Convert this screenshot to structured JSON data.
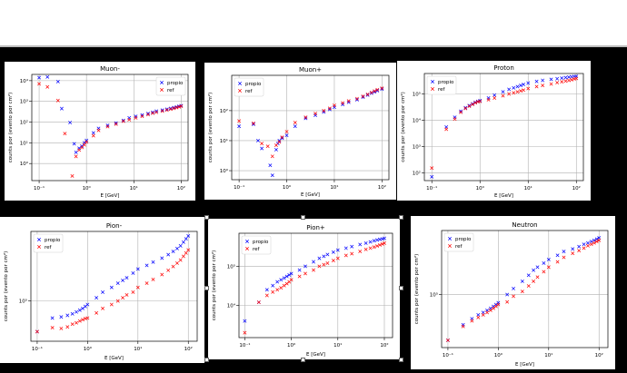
{
  "colors": {
    "propio": "#0000ff",
    "ref": "#ff0000",
    "grid": "#b0b0b0",
    "axis": "#000000"
  },
  "chart_data": [
    {
      "type": "scatter",
      "title": "Muon-",
      "xlabel": "E [GeV]",
      "ylabel": "counts por (evento por cm²)",
      "xscale": "log",
      "yscale": "log",
      "xlim": [
        0.07,
        140
      ],
      "ylim": [
        0.15,
        20000
      ],
      "xticks": [
        0.1,
        1,
        10,
        100
      ],
      "xticklabels": [
        "10⁻¹",
        "10⁰",
        "10¹",
        "10²"
      ],
      "yticks": [
        1,
        10,
        100,
        1000,
        10000
      ],
      "yticklabels": [
        "10⁰",
        "10¹",
        "10²",
        "10³",
        "10⁴"
      ],
      "grid": true,
      "legend_position": "upper right",
      "series": [
        {
          "name": "propio",
          "x": [
            0.1,
            0.15,
            0.25,
            0.3,
            0.45,
            0.55,
            0.6,
            0.7,
            0.8,
            0.9,
            1.0,
            1.4,
            1.8,
            2.8,
            4.2,
            6,
            8,
            11,
            15,
            20,
            25,
            30,
            40,
            50,
            60,
            70,
            80,
            90,
            100
          ],
          "y": [
            14000,
            15000,
            9000,
            450,
            95,
            9,
            3.5,
            5.5,
            7,
            10,
            13,
            30,
            50,
            70,
            90,
            120,
            160,
            190,
            220,
            260,
            300,
            340,
            380,
            420,
            460,
            500,
            540,
            580,
            620
          ]
        },
        {
          "name": "ref",
          "x": [
            0.1,
            0.15,
            0.25,
            0.35,
            0.5,
            0.6,
            0.7,
            0.8,
            0.9,
            1.0,
            1.4,
            1.8,
            2.8,
            4.2,
            6,
            8,
            11,
            15,
            20,
            25,
            30,
            40,
            50,
            60,
            70,
            80,
            90,
            100
          ],
          "y": [
            7000,
            5000,
            1100,
            28,
            0.25,
            2.2,
            4.5,
            6,
            8,
            11,
            22,
            40,
            60,
            80,
            110,
            130,
            160,
            190,
            230,
            270,
            300,
            340,
            380,
            420,
            460,
            500,
            540,
            580
          ]
        }
      ]
    },
    {
      "type": "scatter",
      "title": "Muon+",
      "xlabel": "E [GeV]",
      "ylabel": "counts por (evento por cm²)",
      "xscale": "log",
      "yscale": "log",
      "xlim": [
        0.07,
        140
      ],
      "ylim": [
        0.5,
        1500
      ],
      "xticks": [
        0.1,
        1,
        10,
        100
      ],
      "xticklabels": [
        "10⁻¹",
        "10⁰",
        "10¹",
        "10²"
      ],
      "yticks": [
        1,
        10,
        100
      ],
      "yticklabels": [
        "10⁰",
        "10¹",
        "10²"
      ],
      "grid": true,
      "legend_position": "upper left",
      "series": [
        {
          "name": "propio",
          "x": [
            0.1,
            0.2,
            0.25,
            0.3,
            0.45,
            0.5,
            0.6,
            0.65,
            0.7,
            0.8,
            1.0,
            1.5,
            2.5,
            4,
            6,
            8,
            10,
            15,
            20,
            30,
            40,
            50,
            60,
            70,
            80,
            100
          ],
          "y": [
            30,
            35,
            10,
            5.5,
            1.5,
            0.7,
            5,
            8,
            10,
            12,
            15,
            30,
            55,
            70,
            90,
            110,
            130,
            160,
            190,
            230,
            280,
            330,
            380,
            420,
            460,
            520
          ]
        },
        {
          "name": "ref",
          "x": [
            0.1,
            0.2,
            0.3,
            0.4,
            0.5,
            0.6,
            0.7,
            0.8,
            1.0,
            1.5,
            2.5,
            4,
            6,
            8,
            10,
            15,
            20,
            30,
            40,
            50,
            60,
            70,
            80,
            100
          ],
          "y": [
            45,
            38,
            8,
            6.5,
            3,
            7,
            9,
            13,
            20,
            40,
            60,
            80,
            100,
            120,
            150,
            180,
            210,
            250,
            300,
            350,
            400,
            450,
            500,
            560
          ]
        }
      ]
    },
    {
      "type": "scatter",
      "title": "Proton",
      "xlabel": "E [GeV]",
      "ylabel": "counts por (evento por cm²)",
      "xscale": "log",
      "yscale": "log",
      "xlim": [
        0.07,
        140
      ],
      "ylim": [
        50,
        600000
      ],
      "xticks": [
        0.1,
        1,
        10,
        100
      ],
      "xticklabels": [
        "10⁻¹",
        "10⁰",
        "10¹",
        "10²"
      ],
      "yticks": [
        100,
        1000,
        10000,
        100000
      ],
      "yticklabels": [
        "10²",
        "10³",
        "10⁴",
        "10⁵"
      ],
      "grid": true,
      "legend_position": "upper left",
      "series": [
        {
          "name": "propio",
          "x": [
            0.1,
            0.2,
            0.3,
            0.4,
            0.5,
            0.6,
            0.7,
            0.8,
            0.9,
            1.0,
            1.5,
            2,
            3,
            4,
            5,
            6,
            7,
            8,
            10,
            15,
            20,
            30,
            40,
            50,
            60,
            70,
            80,
            90,
            100
          ],
          "y": [
            70,
            5500,
            13000,
            22000,
            30000,
            36000,
            42000,
            48000,
            52000,
            56000,
            70000,
            90000,
            120000,
            150000,
            170000,
            190000,
            210000,
            230000,
            260000,
            300000,
            330000,
            360000,
            380000,
            400000,
            420000,
            440000,
            450000,
            460000,
            470000
          ]
        },
        {
          "name": "ref",
          "x": [
            0.1,
            0.2,
            0.3,
            0.4,
            0.5,
            0.6,
            0.7,
            0.8,
            0.9,
            1.0,
            1.5,
            2,
            3,
            4,
            5,
            6,
            7,
            8,
            10,
            15,
            20,
            30,
            40,
            50,
            60,
            70,
            80,
            90,
            100
          ],
          "y": [
            150,
            4500,
            11000,
            20000,
            28000,
            34000,
            40000,
            46000,
            50000,
            52000,
            60000,
            70000,
            85000,
            100000,
            110000,
            120000,
            130000,
            140000,
            160000,
            190000,
            210000,
            240000,
            270000,
            290000,
            310000,
            330000,
            350000,
            370000,
            390000
          ]
        }
      ]
    },
    {
      "type": "scatter",
      "title": "Pion-",
      "xlabel": "E [GeV]",
      "ylabel": "counts por (evento por cm²)",
      "xscale": "log",
      "yscale": "log",
      "xlim": [
        0.075,
        150
      ],
      "ylim": [
        30000,
        800000
      ],
      "xticks": [
        0.1,
        1,
        10,
        100
      ],
      "xticklabels": [
        "10⁻¹",
        "10⁰",
        "10¹",
        "10²"
      ],
      "yticks": [
        100000
      ],
      "yticklabels": [
        "10⁵"
      ],
      "grid": true,
      "legend_position": "upper left",
      "series": [
        {
          "name": "propio",
          "x": [
            0.1,
            0.2,
            0.3,
            0.4,
            0.5,
            0.6,
            0.7,
            0.8,
            0.9,
            1.0,
            1.5,
            2,
            3,
            4,
            5,
            6,
            8,
            10,
            15,
            20,
            30,
            40,
            50,
            60,
            70,
            80,
            90,
            100
          ],
          "y": [
            40000,
            60000,
            62000,
            65000,
            68000,
            72000,
            76000,
            80000,
            85000,
            90000,
            110000,
            130000,
            150000,
            170000,
            185000,
            200000,
            230000,
            260000,
            290000,
            320000,
            360000,
            400000,
            440000,
            480000,
            520000,
            580000,
            640000,
            700000
          ]
        },
        {
          "name": "ref",
          "x": [
            0.1,
            0.2,
            0.3,
            0.4,
            0.5,
            0.6,
            0.7,
            0.8,
            0.9,
            1.0,
            1.5,
            2,
            3,
            4,
            5,
            6,
            8,
            10,
            15,
            20,
            30,
            40,
            50,
            60,
            70,
            80,
            90,
            100
          ],
          "y": [
            40000,
            45000,
            44000,
            46000,
            50000,
            52000,
            55000,
            57000,
            59000,
            60000,
            70000,
            80000,
            90000,
            100000,
            110000,
            120000,
            130000,
            150000,
            170000,
            190000,
            220000,
            250000,
            280000,
            310000,
            340000,
            380000,
            420000,
            460000
          ]
        }
      ]
    },
    {
      "type": "scatter",
      "title": "Pion+",
      "xlabel": "E [GeV]",
      "ylabel": "counts por (evento por cm²)",
      "xscale": "log",
      "yscale": "log",
      "xlim": [
        0.075,
        150
      ],
      "ylim": [
        1500,
        700000
      ],
      "xticks": [
        0.1,
        1,
        10,
        100
      ],
      "xticklabels": [
        "10⁻¹",
        "10⁰",
        "10¹",
        "10²"
      ],
      "yticks": [
        10000,
        100000
      ],
      "yticklabels": [
        "10⁴",
        "10⁵"
      ],
      "grid": true,
      "legend_position": "upper left",
      "series": [
        {
          "name": "propio",
          "x": [
            0.1,
            0.2,
            0.3,
            0.4,
            0.5,
            0.6,
            0.7,
            0.8,
            0.9,
            1.0,
            1.5,
            2,
            3,
            4,
            5,
            6,
            8,
            10,
            15,
            20,
            30,
            40,
            50,
            60,
            70,
            80,
            90,
            100
          ],
          "y": [
            4000,
            12000,
            25000,
            32000,
            40000,
            45000,
            50000,
            55000,
            60000,
            65000,
            80000,
            100000,
            130000,
            160000,
            180000,
            200000,
            230000,
            260000,
            290000,
            320000,
            360000,
            390000,
            420000,
            450000,
            470000,
            490000,
            500000,
            520000
          ]
        },
        {
          "name": "ref",
          "x": [
            0.1,
            0.2,
            0.3,
            0.4,
            0.5,
            0.6,
            0.7,
            0.8,
            0.9,
            1.0,
            1.5,
            2,
            3,
            4,
            5,
            6,
            8,
            10,
            15,
            20,
            30,
            40,
            50,
            60,
            70,
            80,
            90,
            100
          ],
          "y": [
            2000,
            12000,
            18000,
            22000,
            25000,
            28000,
            32000,
            36000,
            40000,
            45000,
            55000,
            65000,
            80000,
            100000,
            110000,
            120000,
            140000,
            160000,
            190000,
            210000,
            240000,
            270000,
            290000,
            310000,
            330000,
            350000,
            370000,
            390000
          ]
        }
      ]
    },
    {
      "type": "scatter",
      "title": "Neutron",
      "xlabel": "E [GeV]",
      "ylabel": "counts por (evento por cm²)",
      "xscale": "log",
      "yscale": "log",
      "xlim": [
        0.075,
        150
      ],
      "ylim": [
        20000,
        700000
      ],
      "xticks": [
        0.1,
        1,
        10,
        100
      ],
      "xticklabels": [
        "10⁻¹",
        "10⁰",
        "10¹",
        "10²"
      ],
      "yticks": [
        100000
      ],
      "yticklabels": [
        "10⁵"
      ],
      "grid": true,
      "legend_position": "upper left",
      "series": [
        {
          "name": "propio",
          "x": [
            0.1,
            0.2,
            0.3,
            0.4,
            0.5,
            0.6,
            0.7,
            0.8,
            0.9,
            1.0,
            1.5,
            2,
            3,
            4,
            5,
            6,
            8,
            10,
            15,
            20,
            30,
            40,
            50,
            60,
            70,
            80,
            90,
            100
          ],
          "y": [
            25000,
            40000,
            48000,
            54000,
            58000,
            62000,
            66000,
            70000,
            74000,
            78000,
            100000,
            120000,
            150000,
            180000,
            210000,
            230000,
            260000,
            290000,
            330000,
            370000,
            400000,
            430000,
            460000,
            480000,
            500000,
            520000,
            540000,
            560000
          ]
        },
        {
          "name": "ref",
          "x": [
            0.1,
            0.2,
            0.3,
            0.4,
            0.5,
            0.6,
            0.7,
            0.8,
            0.9,
            1.0,
            1.5,
            2,
            3,
            4,
            5,
            6,
            8,
            10,
            15,
            20,
            30,
            40,
            50,
            60,
            70,
            80,
            90,
            100
          ],
          "y": [
            25000,
            38000,
            45000,
            50000,
            54000,
            58000,
            62000,
            66000,
            70000,
            74000,
            80000,
            95000,
            110000,
            130000,
            150000,
            170000,
            200000,
            230000,
            270000,
            310000,
            350000,
            380000,
            410000,
            440000,
            460000,
            480000,
            500000,
            520000
          ]
        }
      ]
    }
  ]
}
